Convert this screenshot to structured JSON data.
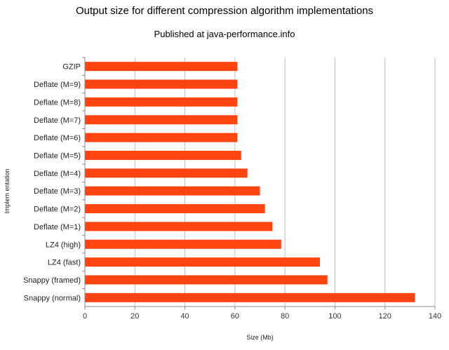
{
  "chart_data": {
    "type": "bar",
    "orientation": "horizontal",
    "title": "Output size for different compression algorithm implementations",
    "subtitle": "Published at java-performance.info",
    "xlabel": "Size (Mb)",
    "ylabel": "Implem entation",
    "xlim": [
      0,
      140
    ],
    "xticks": [
      0,
      20,
      40,
      60,
      80,
      100,
      120,
      140
    ],
    "grid": true,
    "legend": "none",
    "bar_color": "#ff4412",
    "gridline_color": "#bfbfbf",
    "categories": [
      "GZIP",
      "Deflate (M=9)",
      "Deflate (M=8)",
      "Deflate (M=7)",
      "Deflate (M=6)",
      "Deflate (M=5)",
      "Deflate (M=4)",
      "Deflate (M=3)",
      "Deflate (M=2)",
      "Deflate (M=1)",
      "LZ4 (high)",
      "LZ4 (fast)",
      "Snappy (framed)",
      "Snappy (normal)"
    ],
    "values": [
      61,
      61,
      61,
      61,
      61,
      62.5,
      65,
      70,
      72,
      75,
      78.5,
      94,
      97,
      132
    ]
  }
}
